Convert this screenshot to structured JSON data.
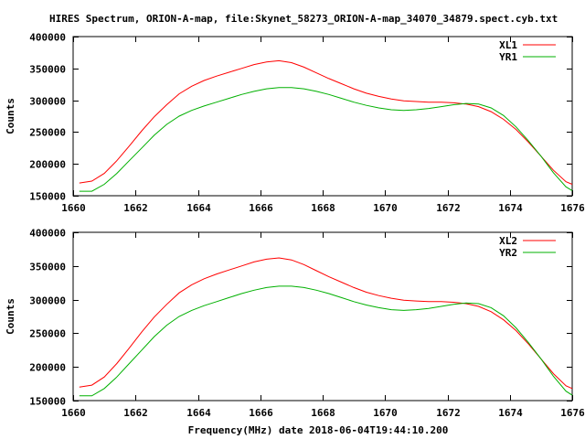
{
  "figure": {
    "title": "HIRES Spectrum, ORION-A-map, file:Skynet_58273_ORION-A-map_34070_34879.spect.cyb.txt",
    "xlabel": "Frequency(MHz) date 2018-06-04T19:44:10.200"
  },
  "chart_data": [
    {
      "type": "line",
      "ylabel": "Counts",
      "xlim": [
        1660,
        1676
      ],
      "ylim": [
        150000,
        400000
      ],
      "xticks": [
        1660,
        1662,
        1664,
        1666,
        1668,
        1670,
        1672,
        1674,
        1676
      ],
      "yticks": [
        150000,
        200000,
        250000,
        300000,
        350000,
        400000
      ],
      "legend_position": "top-right",
      "grid": false,
      "series": [
        {
          "name": "XL1",
          "color": "#ff0000",
          "points": [
            [
              1660.2,
              170000
            ],
            [
              1660.6,
              173000
            ],
            [
              1661.0,
              185000
            ],
            [
              1661.4,
              205000
            ],
            [
              1661.8,
              228000
            ],
            [
              1662.2,
              252000
            ],
            [
              1662.6,
              274000
            ],
            [
              1663.0,
              293000
            ],
            [
              1663.4,
              310000
            ],
            [
              1663.8,
              322000
            ],
            [
              1664.2,
              331000
            ],
            [
              1664.6,
              338000
            ],
            [
              1665.0,
              344000
            ],
            [
              1665.4,
              350000
            ],
            [
              1665.8,
              356000
            ],
            [
              1666.2,
              360000
            ],
            [
              1666.6,
              362000
            ],
            [
              1667.0,
              359000
            ],
            [
              1667.4,
              352000
            ],
            [
              1667.8,
              343000
            ],
            [
              1668.2,
              334000
            ],
            [
              1668.6,
              326000
            ],
            [
              1669.0,
              318000
            ],
            [
              1669.4,
              311000
            ],
            [
              1669.8,
              306000
            ],
            [
              1670.2,
              302000
            ],
            [
              1670.6,
              299000
            ],
            [
              1671.0,
              298000
            ],
            [
              1671.4,
              297000
            ],
            [
              1671.8,
              297000
            ],
            [
              1672.2,
              296000
            ],
            [
              1672.6,
              294000
            ],
            [
              1673.0,
              290000
            ],
            [
              1673.4,
              282000
            ],
            [
              1673.8,
              270000
            ],
            [
              1674.2,
              254000
            ],
            [
              1674.6,
              234000
            ],
            [
              1675.0,
              212000
            ],
            [
              1675.4,
              190000
            ],
            [
              1675.8,
              172000
            ],
            [
              1676.0,
              168000
            ]
          ]
        },
        {
          "name": "YR1",
          "color": "#00b000",
          "points": [
            [
              1660.2,
              157000
            ],
            [
              1660.6,
              157000
            ],
            [
              1661.0,
              168000
            ],
            [
              1661.4,
              185000
            ],
            [
              1661.8,
              205000
            ],
            [
              1662.2,
              225000
            ],
            [
              1662.6,
              245000
            ],
            [
              1663.0,
              262000
            ],
            [
              1663.4,
              275000
            ],
            [
              1663.8,
              284000
            ],
            [
              1664.2,
              291000
            ],
            [
              1664.6,
              297000
            ],
            [
              1665.0,
              303000
            ],
            [
              1665.4,
              309000
            ],
            [
              1665.8,
              314000
            ],
            [
              1666.2,
              318000
            ],
            [
              1666.6,
              320000
            ],
            [
              1667.0,
              320000
            ],
            [
              1667.4,
              318000
            ],
            [
              1667.8,
              314000
            ],
            [
              1668.2,
              309000
            ],
            [
              1668.6,
              303000
            ],
            [
              1669.0,
              297000
            ],
            [
              1669.4,
              292000
            ],
            [
              1669.8,
              288000
            ],
            [
              1670.2,
              285000
            ],
            [
              1670.6,
              284000
            ],
            [
              1671.0,
              285000
            ],
            [
              1671.4,
              287000
            ],
            [
              1671.8,
              290000
            ],
            [
              1672.2,
              293000
            ],
            [
              1672.6,
              295000
            ],
            [
              1673.0,
              294000
            ],
            [
              1673.4,
              288000
            ],
            [
              1673.8,
              276000
            ],
            [
              1674.2,
              258000
            ],
            [
              1674.6,
              236000
            ],
            [
              1675.0,
              212000
            ],
            [
              1675.4,
              186000
            ],
            [
              1675.8,
              164000
            ],
            [
              1676.0,
              158000
            ]
          ]
        }
      ]
    },
    {
      "type": "line",
      "ylabel": "Counts",
      "xlim": [
        1660,
        1676
      ],
      "ylim": [
        150000,
        400000
      ],
      "xticks": [
        1660,
        1662,
        1664,
        1666,
        1668,
        1670,
        1672,
        1674,
        1676
      ],
      "yticks": [
        150000,
        200000,
        250000,
        300000,
        350000,
        400000
      ],
      "legend_position": "top-right",
      "grid": false,
      "series": [
        {
          "name": "XL2",
          "color": "#ff0000",
          "points": [
            [
              1660.2,
              170000
            ],
            [
              1660.6,
              173000
            ],
            [
              1661.0,
              185000
            ],
            [
              1661.4,
              205000
            ],
            [
              1661.8,
              228000
            ],
            [
              1662.2,
              252000
            ],
            [
              1662.6,
              274000
            ],
            [
              1663.0,
              293000
            ],
            [
              1663.4,
              310000
            ],
            [
              1663.8,
              322000
            ],
            [
              1664.2,
              331000
            ],
            [
              1664.6,
              338000
            ],
            [
              1665.0,
              344000
            ],
            [
              1665.4,
              350000
            ],
            [
              1665.8,
              356000
            ],
            [
              1666.2,
              360000
            ],
            [
              1666.6,
              362000
            ],
            [
              1667.0,
              359000
            ],
            [
              1667.4,
              352000
            ],
            [
              1667.8,
              343000
            ],
            [
              1668.2,
              334000
            ],
            [
              1668.6,
              326000
            ],
            [
              1669.0,
              318000
            ],
            [
              1669.4,
              311000
            ],
            [
              1669.8,
              306000
            ],
            [
              1670.2,
              302000
            ],
            [
              1670.6,
              299000
            ],
            [
              1671.0,
              298000
            ],
            [
              1671.4,
              297000
            ],
            [
              1671.8,
              297000
            ],
            [
              1672.2,
              296000
            ],
            [
              1672.6,
              294000
            ],
            [
              1673.0,
              290000
            ],
            [
              1673.4,
              282000
            ],
            [
              1673.8,
              270000
            ],
            [
              1674.2,
              254000
            ],
            [
              1674.6,
              234000
            ],
            [
              1675.0,
              212000
            ],
            [
              1675.4,
              190000
            ],
            [
              1675.8,
              172000
            ],
            [
              1676.0,
              168000
            ]
          ]
        },
        {
          "name": "YR2",
          "color": "#00b000",
          "points": [
            [
              1660.2,
              157000
            ],
            [
              1660.6,
              157000
            ],
            [
              1661.0,
              168000
            ],
            [
              1661.4,
              185000
            ],
            [
              1661.8,
              205000
            ],
            [
              1662.2,
              225000
            ],
            [
              1662.6,
              245000
            ],
            [
              1663.0,
              262000
            ],
            [
              1663.4,
              275000
            ],
            [
              1663.8,
              284000
            ],
            [
              1664.2,
              291000
            ],
            [
              1664.6,
              297000
            ],
            [
              1665.0,
              303000
            ],
            [
              1665.4,
              309000
            ],
            [
              1665.8,
              314000
            ],
            [
              1666.2,
              318000
            ],
            [
              1666.6,
              320000
            ],
            [
              1667.0,
              320000
            ],
            [
              1667.4,
              318000
            ],
            [
              1667.8,
              314000
            ],
            [
              1668.2,
              309000
            ],
            [
              1668.6,
              303000
            ],
            [
              1669.0,
              297000
            ],
            [
              1669.4,
              292000
            ],
            [
              1669.8,
              288000
            ],
            [
              1670.2,
              285000
            ],
            [
              1670.6,
              284000
            ],
            [
              1671.0,
              285000
            ],
            [
              1671.4,
              287000
            ],
            [
              1671.8,
              290000
            ],
            [
              1672.2,
              293000
            ],
            [
              1672.6,
              295000
            ],
            [
              1673.0,
              294000
            ],
            [
              1673.4,
              288000
            ],
            [
              1673.8,
              276000
            ],
            [
              1674.2,
              258000
            ],
            [
              1674.6,
              236000
            ],
            [
              1675.0,
              212000
            ],
            [
              1675.4,
              186000
            ],
            [
              1675.8,
              164000
            ],
            [
              1676.0,
              158000
            ]
          ]
        }
      ]
    }
  ]
}
